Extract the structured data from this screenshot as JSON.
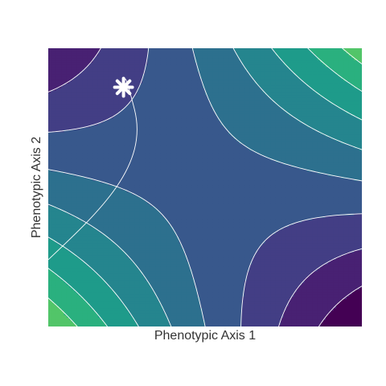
{
  "chart_data": {
    "type": "contour",
    "title": "",
    "xlabel": "Phenotypic Axis 1",
    "ylabel": "Phenotypic Axis 2",
    "grid": false,
    "legend": "none",
    "colormap": "viridis",
    "level_colors": [
      "#440154",
      "#482173",
      "#433e85",
      "#38588c",
      "#2d708e",
      "#25858e",
      "#1e9b8a",
      "#2ab07f",
      "#52c569"
    ],
    "line_color": "#ffffff",
    "marker": {
      "symbol": "asterisk",
      "color": "#ffffff",
      "x": 0.24,
      "y": 0.86
    },
    "xlim": [
      0,
      1
    ],
    "ylim": [
      0,
      1
    ]
  }
}
